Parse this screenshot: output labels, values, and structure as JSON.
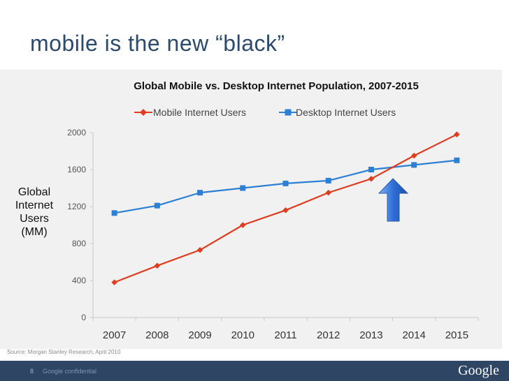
{
  "slide": {
    "title": "mobile is the new “black”",
    "source": "Source: Morgan Stanley Research, April 2010",
    "page_number": "8",
    "confidential": "Google confidential",
    "logo_text": "Google"
  },
  "colors": {
    "mobile": "#e03c1f",
    "desktop": "#2b7fd4",
    "panel": "#f1f1f1",
    "footer": "#2e4663",
    "arrow": "#2f6ed6"
  },
  "chart_data": {
    "type": "line",
    "title": "Global Mobile vs. Desktop Internet Population, 2007-2015",
    "ylabel": "Global Internet Users (MM)",
    "ylabel_lines": [
      "Global",
      "Internet",
      "Users",
      "(MM)"
    ],
    "xlabel": "",
    "categories": [
      "2007",
      "2008",
      "2009",
      "2010",
      "2011",
      "2012",
      "2013",
      "2014",
      "2015"
    ],
    "yticks": [
      0,
      400,
      800,
      1200,
      1600,
      2000
    ],
    "ylim": [
      0,
      2000
    ],
    "legend_position": "top",
    "grid": false,
    "series": [
      {
        "name": "Mobile Internet Users",
        "marker": "diamond",
        "values": [
          380,
          560,
          730,
          1000,
          1160,
          1350,
          1500,
          1750,
          1980
        ]
      },
      {
        "name": "Desktop Internet Users",
        "marker": "square",
        "values": [
          1130,
          1210,
          1350,
          1400,
          1450,
          1480,
          1600,
          1650,
          1700
        ]
      }
    ],
    "annotation": {
      "type": "up-arrow",
      "near_category": "2013.5",
      "meaning": "crossover point"
    }
  }
}
